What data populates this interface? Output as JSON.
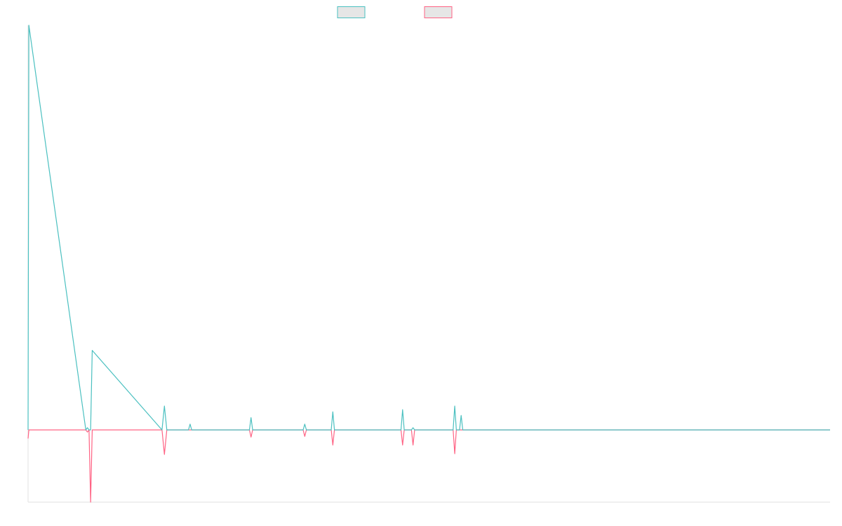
{
  "chart_data": {
    "type": "line",
    "title": "",
    "xlabel": "",
    "ylabel": "",
    "legend_placement": "top-center",
    "grid": false,
    "xlim": [
      0,
      100
    ],
    "ylim": [
      -10,
      56
    ],
    "x": [
      0,
      0.1,
      7.2,
      7.4,
      7.6,
      7.8,
      8.0,
      16.7,
      17.0,
      17.3,
      20.0,
      20.2,
      20.4,
      27.6,
      27.8,
      28.0,
      34.3,
      34.5,
      34.7,
      37.8,
      38.0,
      38.2,
      46.5,
      46.7,
      46.9,
      47.8,
      48.0,
      48.2,
      53.0,
      53.2,
      53.4,
      53.8,
      54.0,
      54.2,
      100
    ],
    "series": [
      {
        "name": "",
        "color": "#4bc0c0",
        "values": [
          0,
          56,
          0,
          0.3,
          0,
          0,
          11,
          0,
          3.3,
          0,
          0,
          0.8,
          0,
          0,
          1.7,
          0,
          0,
          0.8,
          0,
          0,
          2.5,
          0,
          0,
          2.8,
          0,
          0,
          0.3,
          0,
          0,
          3.3,
          0,
          0,
          2.0,
          0,
          0
        ]
      },
      {
        "name": "",
        "color": "#ff6384",
        "values": [
          -1.2,
          0,
          0,
          -0.3,
          0,
          -10,
          0,
          0,
          -3.4,
          0,
          0,
          0,
          0,
          0,
          -1.0,
          0,
          0,
          -0.9,
          0,
          0,
          -2.1,
          0,
          0,
          -2.1,
          0,
          0,
          -2.1,
          0,
          0,
          -3.3,
          0,
          0,
          0,
          0,
          0
        ]
      }
    ]
  }
}
